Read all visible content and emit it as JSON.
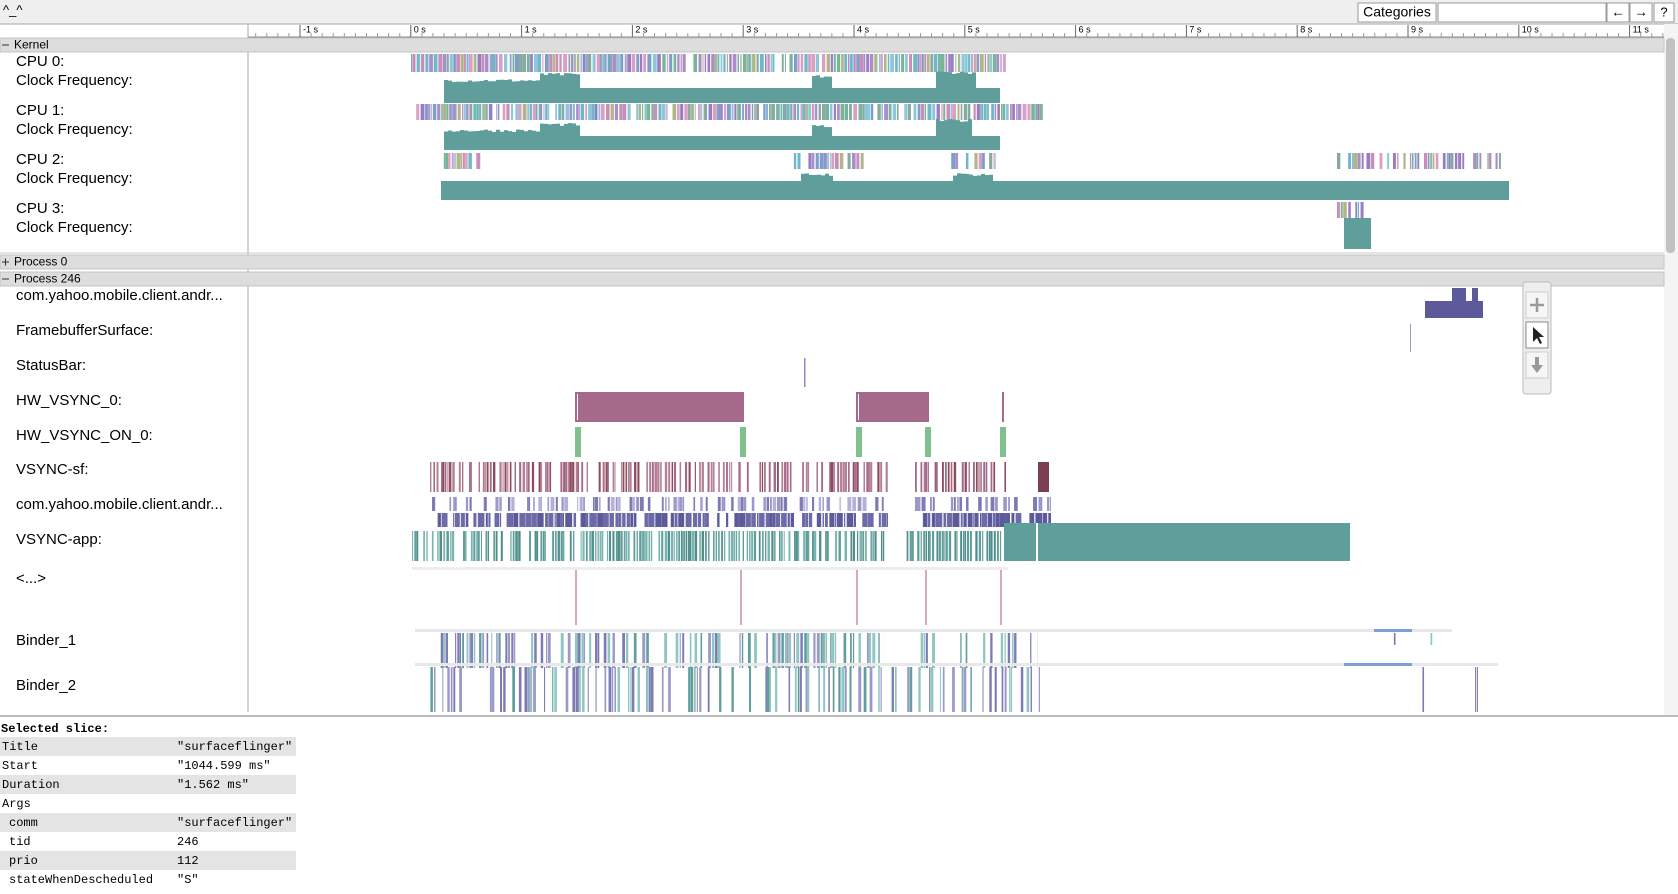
{
  "toolbar": {
    "title": "^_^",
    "categories_button": "Categories",
    "prev_button": "←",
    "next_button": "→",
    "help_button": "?"
  },
  "ruler": {
    "labels": [
      "-1 s",
      "0 s",
      "1 s",
      "2 s",
      "3 s",
      "4 s",
      "5 s",
      "6 s",
      "7 s",
      "8 s",
      "9 s",
      "10 s",
      "11 s"
    ]
  },
  "groups": [
    {
      "name": "Kernel",
      "tracks": [
        "CPU 0:",
        "Clock Frequency:",
        "CPU 1:",
        "Clock Frequency:",
        "CPU 2:",
        "Clock Frequency:",
        "CPU 3:",
        "Clock Frequency:"
      ]
    },
    {
      "name": "Process 0"
    },
    {
      "name": "Process 246",
      "tracks": [
        "com.yahoo.mobile.client.andr...",
        "FramebufferSurface:",
        "StatusBar:",
        "HW_VSYNC_0:",
        "HW_VSYNC_ON_0:",
        "VSYNC-sf:",
        "com.yahoo.mobile.client.andr...",
        "VSYNC-app:",
        "<...>",
        "Binder_1",
        "Binder_2"
      ]
    }
  ],
  "selected_slice": {
    "heading": "Selected slice:",
    "rows": [
      [
        "Title",
        "\"surfaceflinger\""
      ],
      [
        "Start",
        "\"1044.599 ms\""
      ],
      [
        "Duration",
        "\"1.562 ms\""
      ]
    ],
    "args_heading": "Args",
    "args": [
      [
        "comm",
        "\"surfaceflinger\""
      ],
      [
        "tid",
        246
      ],
      [
        "prio",
        112
      ],
      [
        "stateWhenDescheduled",
        "\"S\""
      ]
    ]
  }
}
